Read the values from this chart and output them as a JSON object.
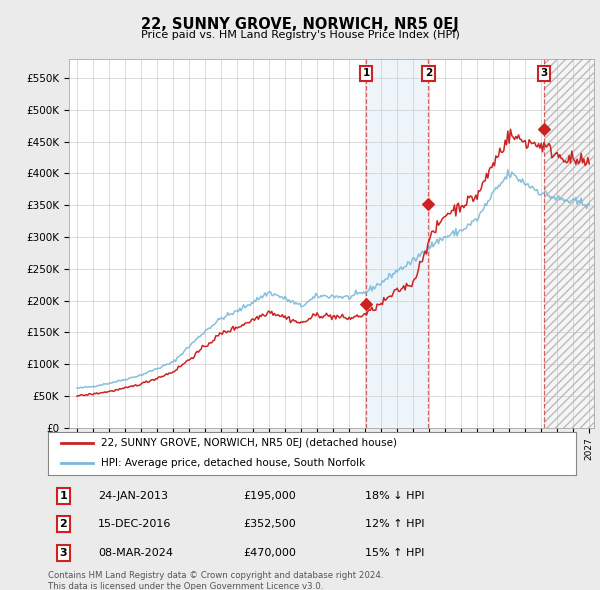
{
  "title": "22, SUNNY GROVE, NORWICH, NR5 0EJ",
  "subtitle": "Price paid vs. HM Land Registry's House Price Index (HPI)",
  "ylim": [
    0,
    580000
  ],
  "yticks": [
    0,
    50000,
    100000,
    150000,
    200000,
    250000,
    300000,
    350000,
    400000,
    450000,
    500000,
    550000
  ],
  "ytick_labels": [
    "£0",
    "£50K",
    "£100K",
    "£150K",
    "£200K",
    "£250K",
    "£300K",
    "£350K",
    "£400K",
    "£450K",
    "£500K",
    "£550K"
  ],
  "hpi_color": "#7ab8d9",
  "price_color": "#cc2222",
  "annotation_box_color": "#cc2222",
  "background_color": "#ebebeb",
  "plot_bg_color": "#ffffff",
  "grid_color": "#cccccc",
  "legend_label_price": "22, SUNNY GROVE, NORWICH, NR5 0EJ (detached house)",
  "legend_label_hpi": "HPI: Average price, detached house, South Norfolk",
  "transactions": [
    {
      "num": 1,
      "date": "24-JAN-2013",
      "price": 195000,
      "hpi_rel": "18% ↓ HPI",
      "x_year": 2013.07
    },
    {
      "num": 2,
      "date": "15-DEC-2016",
      "price": 352500,
      "hpi_rel": "12% ↑ HPI",
      "x_year": 2016.96
    },
    {
      "num": 3,
      "date": "08-MAR-2024",
      "price": 470000,
      "hpi_rel": "15% ↑ HPI",
      "x_year": 2024.19
    }
  ],
  "footer": "Contains HM Land Registry data © Crown copyright and database right 2024.\nThis data is licensed under the Open Government Licence v3.0.",
  "xmin": 1995,
  "xmax": 2027,
  "hpi_anchors": {
    "1995": 62000,
    "1996": 65000,
    "1997": 70000,
    "1998": 76000,
    "1999": 83000,
    "2000": 93000,
    "2001": 103000,
    "2002": 128000,
    "2003": 152000,
    "2004": 172000,
    "2005": 183000,
    "2006": 198000,
    "2007": 213000,
    "2008": 203000,
    "2009": 191000,
    "2010": 207000,
    "2011": 207000,
    "2012": 205000,
    "2013": 213000,
    "2014": 228000,
    "2015": 247000,
    "2016": 262000,
    "2017": 285000,
    "2018": 300000,
    "2019": 310000,
    "2020": 328000,
    "2021": 368000,
    "2022": 400000,
    "2023": 385000,
    "2024": 370000,
    "2025": 360000,
    "2026": 355000,
    "2027": 352000
  },
  "price_anchors": {
    "1995": 50000,
    "1996": 53000,
    "1997": 57000,
    "1998": 62000,
    "1999": 69000,
    "2000": 78000,
    "2001": 88000,
    "2002": 107000,
    "2003": 128000,
    "2004": 148000,
    "2005": 158000,
    "2006": 170000,
    "2007": 183000,
    "2008": 174000,
    "2009": 164000,
    "2010": 178000,
    "2011": 175000,
    "2012": 172000,
    "2013": 178000,
    "2014": 195000,
    "2015": 215000,
    "2016": 228000,
    "2017": 295000,
    "2018": 335000,
    "2019": 350000,
    "2020": 365000,
    "2021": 415000,
    "2022": 460000,
    "2023": 450000,
    "2024": 445000,
    "2025": 430000,
    "2026": 420000,
    "2027": 415000
  }
}
